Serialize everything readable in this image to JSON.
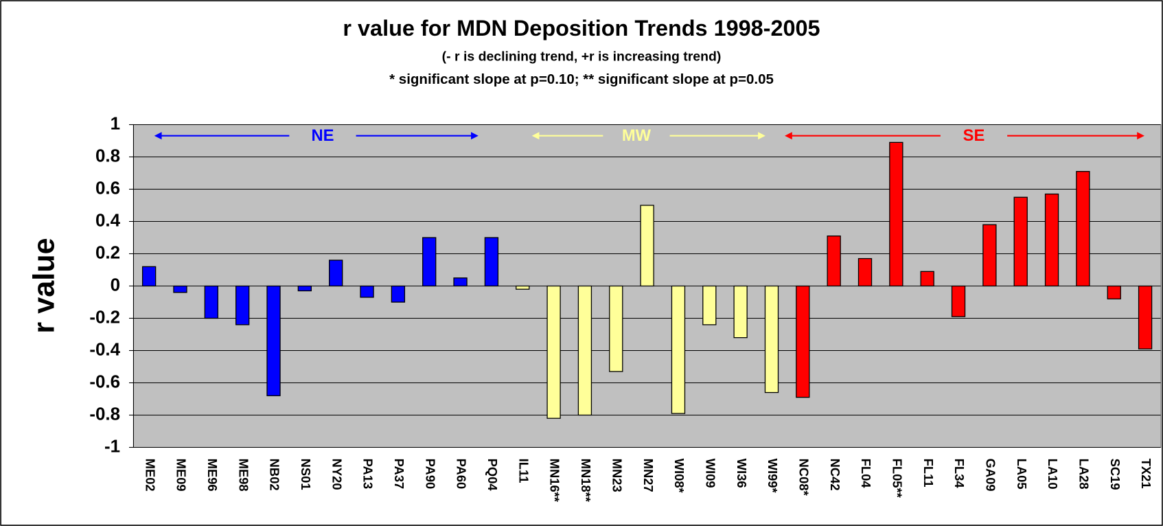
{
  "chart_data": {
    "type": "bar",
    "title": "r value for MDN Deposition Trends 1998-2005",
    "subtitle": "(- r is declining trend, +r is increasing trend)",
    "note": "* significant slope at p=0.10;   ** significant slope at p=0.05",
    "y_label": "r value",
    "categories": [
      "ME02",
      "ME09",
      "ME96",
      "ME98",
      "NB02",
      "NS01",
      "NY20",
      "PA13",
      "PA37",
      "PA90",
      "PA60",
      "PQ04",
      "IL11",
      "MN16**",
      "MN18**",
      "MN23",
      "MN27",
      "WI08*",
      "WI09",
      "WI36",
      "WI99*",
      "NC08*",
      "NC42",
      "FL04",
      "FL05**",
      "FL11",
      "FL34",
      "GA09",
      "LA05",
      "LA10",
      "LA28",
      "SC19",
      "TX21"
    ],
    "values": [
      0.12,
      -0.04,
      -0.2,
      -0.24,
      -0.68,
      -0.03,
      0.16,
      -0.07,
      -0.1,
      0.3,
      0.05,
      0.3,
      -0.02,
      -0.82,
      -0.8,
      -0.53,
      0.5,
      -0.79,
      -0.24,
      -0.32,
      -0.66,
      -0.69,
      0.31,
      0.17,
      0.89,
      0.09,
      -0.19,
      0.38,
      0.55,
      0.57,
      0.71,
      -0.08,
      -0.39
    ],
    "colors": [
      "#0000ff",
      "#0000ff",
      "#0000ff",
      "#0000ff",
      "#0000ff",
      "#0000ff",
      "#0000ff",
      "#0000ff",
      "#0000ff",
      "#0000ff",
      "#0000ff",
      "#0000ff",
      "#ffff99",
      "#ffff99",
      "#ffff99",
      "#ffff99",
      "#ffff99",
      "#ffff99",
      "#ffff99",
      "#ffff99",
      "#ffff99",
      "#ff0000",
      "#ff0000",
      "#ff0000",
      "#ff0000",
      "#ff0000",
      "#ff0000",
      "#ff0000",
      "#ff0000",
      "#ff0000",
      "#ff0000",
      "#ff0000",
      "#ff0000"
    ],
    "annotations": [
      {
        "text": "NE",
        "color": "#0000ff"
      },
      {
        "text": "MW",
        "color": "#ffff99"
      },
      {
        "text": "SE",
        "color": "#ff0000"
      }
    ],
    "ylim": [
      -1,
      1
    ],
    "yticks": [
      -1,
      -0.8,
      -0.6,
      -0.4,
      -0.2,
      0,
      0.2,
      0.4,
      0.6,
      0.8,
      1
    ],
    "grid": true
  }
}
